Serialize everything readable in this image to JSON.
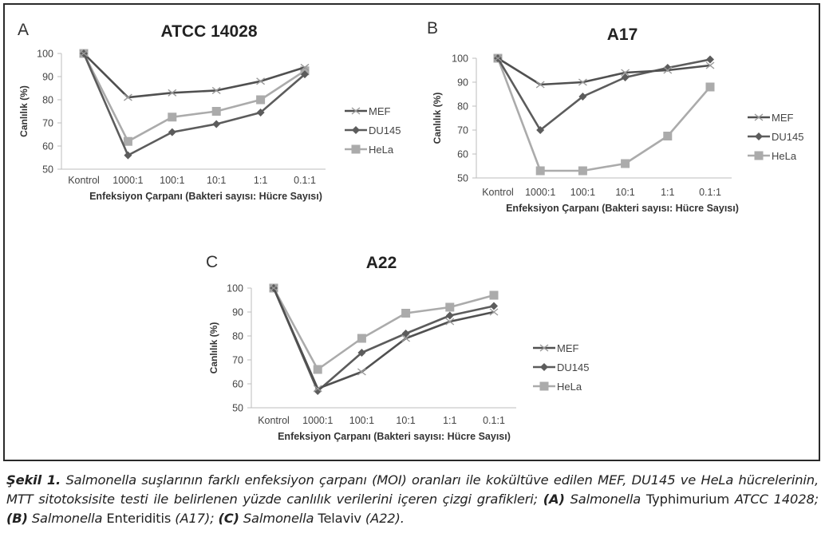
{
  "figure": {
    "caption": {
      "label": "Şekil 1.",
      "part1": " Salmonella suşlarının farklı enfeksiyon çarpanı (MOI) oranları ile kokültüve edilen MEF, DU145 ve HeLa hücrelerinin, MTT sitotoksisite testi ile belirlenen yüzde canlılık verilerini içeren çizgi grafikleri; ",
      "a_tag": "(A)",
      "a_genus": " Salmonella",
      "a_species": " Typhimurium",
      "a_strain": " ATCC 14028; ",
      "b_tag": "(B)",
      "b_genus": " Salmonella",
      "b_species": " Enteriditis",
      "b_strain": " (A17); ",
      "c_tag": "(C)",
      "c_genus": " Salmonella",
      "c_species": " Telaviv",
      "c_strain": " (A22)."
    }
  },
  "colors": {
    "MEF": "#505050",
    "DU145": "#5c5c5c",
    "HeLa": "#ababab",
    "MEF_marker": "#9a9a9a"
  },
  "chart_data": [
    {
      "panel": "A",
      "type": "line",
      "title": "ATCC 14028",
      "xlabel": "Enfeksiyon Çarpanı (Bakteri sayısı: Hücre Sayısı)",
      "ylabel": "Canlılık (%)",
      "categories": [
        "Kontrol",
        "1000:1",
        "100:1",
        "10:1",
        "1:1",
        "0.1:1"
      ],
      "ylim": [
        50,
        100
      ],
      "yticks": [
        "50",
        "60",
        "70",
        "80",
        "90",
        "100"
      ],
      "legend_position": "right",
      "series": [
        {
          "name": "MEF",
          "marker": "x",
          "values": [
            100,
            81,
            83,
            84,
            88,
            94
          ]
        },
        {
          "name": "DU145",
          "marker": "diamond",
          "values": [
            100,
            56,
            66,
            69.5,
            74.5,
            91
          ]
        },
        {
          "name": "HeLa",
          "marker": "square",
          "values": [
            100,
            62,
            72.5,
            75,
            80,
            92.5
          ]
        }
      ]
    },
    {
      "panel": "B",
      "type": "line",
      "title": "A17",
      "xlabel": "Enfeksiyon Çarpanı (Bakteri sayısı: Hücre Sayısı)",
      "ylabel": "Canlılık (%)",
      "categories": [
        "Kontrol",
        "1000:1",
        "100:1",
        "10:1",
        "1:1",
        "0.1:1"
      ],
      "ylim": [
        50,
        100
      ],
      "yticks": [
        "50",
        "60",
        "70",
        "80",
        "90",
        "100"
      ],
      "legend_position": "right",
      "series": [
        {
          "name": "MEF",
          "marker": "x",
          "values": [
            100,
            89,
            90,
            94,
            95,
            97
          ]
        },
        {
          "name": "DU145",
          "marker": "diamond",
          "values": [
            100,
            70,
            84,
            92,
            96,
            99.5
          ]
        },
        {
          "name": "HeLa",
          "marker": "square",
          "values": [
            100,
            53,
            53,
            56,
            67.5,
            88
          ]
        }
      ]
    },
    {
      "panel": "C",
      "type": "line",
      "title": "A22",
      "xlabel": "Enfeksiyon Çarpanı (Bakteri sayısı: Hücre Sayısı)",
      "ylabel": "Canlılık (%)",
      "categories": [
        "Kontrol",
        "1000:1",
        "100:1",
        "10:1",
        "1:1",
        "0.1:1"
      ],
      "ylim": [
        50,
        100
      ],
      "yticks": [
        "50",
        "60",
        "70",
        "80",
        "90",
        "100"
      ],
      "legend_position": "right",
      "series": [
        {
          "name": "MEF",
          "marker": "x",
          "values": [
            100,
            58,
            65,
            79,
            86,
            90
          ]
        },
        {
          "name": "DU145",
          "marker": "diamond",
          "values": [
            100,
            57,
            73,
            81,
            88.5,
            92.5
          ]
        },
        {
          "name": "HeLa",
          "marker": "square",
          "values": [
            100,
            66,
            79,
            89.5,
            92,
            97
          ]
        }
      ]
    }
  ]
}
